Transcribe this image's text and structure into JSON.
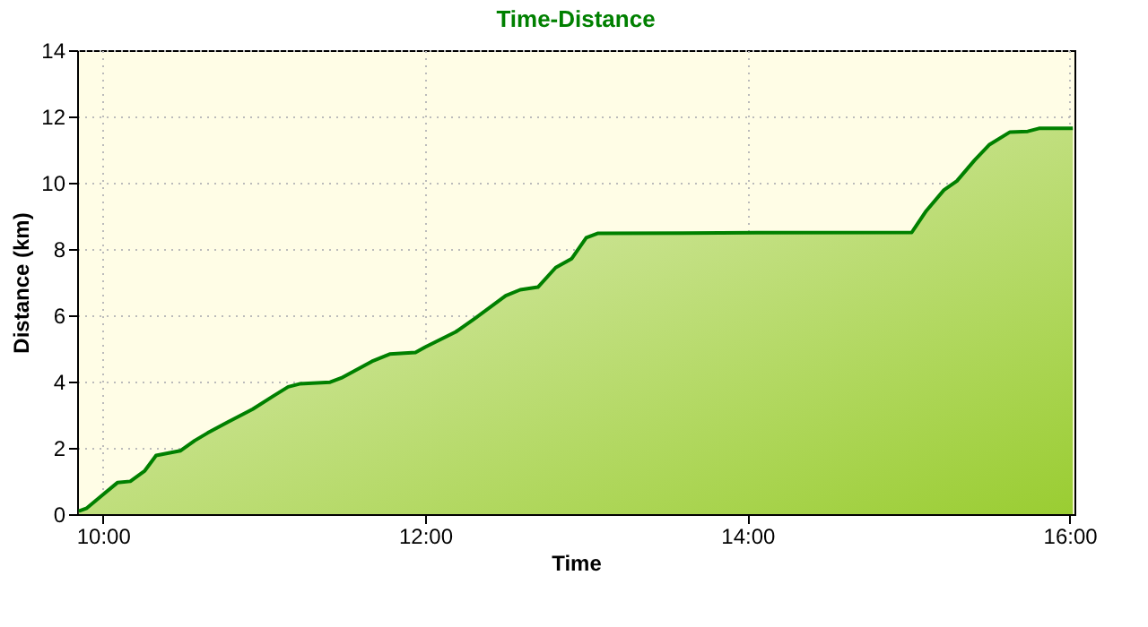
{
  "chart_data": {
    "type": "area",
    "title": "Time-Distance",
    "xlabel": "Time",
    "ylabel": "Distance (km)",
    "x": [
      9.85,
      9.9,
      10.0,
      10.09,
      10.17,
      10.26,
      10.33,
      10.48,
      10.57,
      10.65,
      10.78,
      10.93,
      11.06,
      11.15,
      11.22,
      11.41,
      11.48,
      11.67,
      11.78,
      11.94,
      12.0,
      12.19,
      12.31,
      12.5,
      12.59,
      12.7,
      12.81,
      12.91,
      13.0,
      13.07,
      14.06,
      15.02,
      15.11,
      15.22,
      15.3,
      15.41,
      15.5,
      15.63,
      15.74,
      15.81,
      16.02
    ],
    "series": [
      {
        "color": "#008000",
        "values": [
          0.09,
          0.18,
          0.59,
          0.95,
          0.99,
          1.31,
          1.77,
          1.91,
          2.22,
          2.45,
          2.79,
          3.17,
          3.57,
          3.84,
          3.93,
          3.98,
          4.11,
          4.61,
          4.83,
          4.88,
          5.04,
          5.5,
          5.91,
          6.59,
          6.77,
          6.85,
          7.44,
          7.71,
          8.34,
          8.47,
          8.49,
          8.5,
          9.15,
          9.78,
          10.05,
          10.68,
          11.14,
          11.53,
          11.55,
          11.64,
          11.64
        ]
      }
    ],
    "xlim": [
      9.84,
      16.03
    ],
    "xticks": [
      {
        "value": 10,
        "label": "10:00"
      },
      {
        "value": 12,
        "label": "12:00"
      },
      {
        "value": 14,
        "label": "14:00"
      },
      {
        "value": 16,
        "label": "16:00"
      }
    ],
    "ylim": [
      0,
      14
    ],
    "yticks": [
      0,
      2,
      4,
      6,
      8,
      10,
      12,
      14
    ],
    "grid": true
  }
}
